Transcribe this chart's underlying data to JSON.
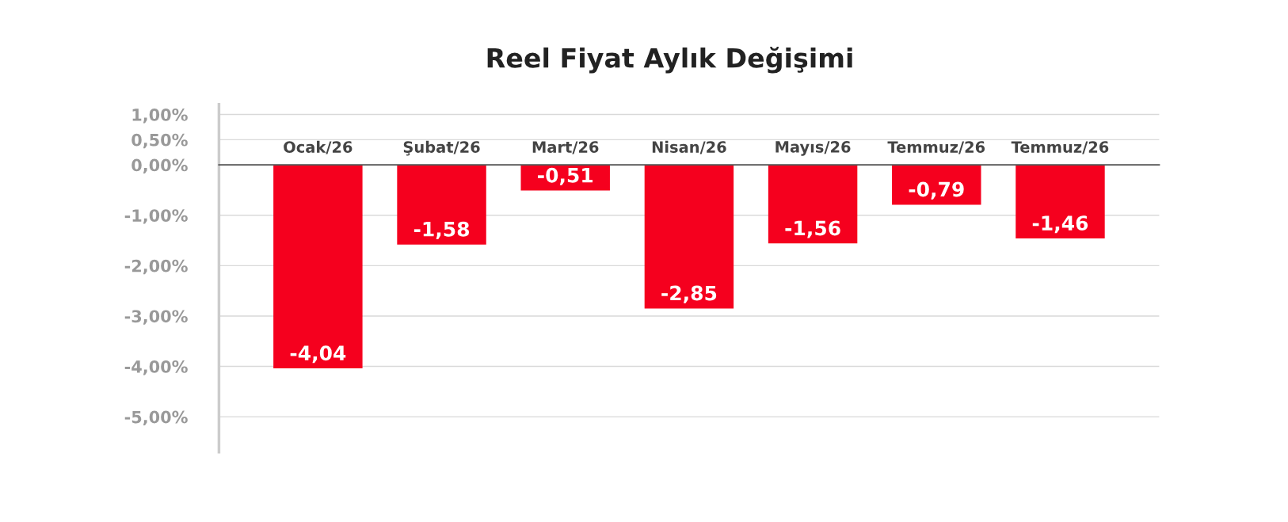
{
  "chart_data": {
    "type": "bar",
    "title": "Reel Fiyat Aylık Değişimi",
    "categories": [
      "Ocak/26",
      "Şubat/26",
      "Mart/26",
      "Nisan/26",
      "Mayıs/26",
      "Temmuz/26",
      "Temmuz/26"
    ],
    "values": [
      -4.04,
      -1.58,
      -0.51,
      -2.85,
      -1.56,
      -0.79,
      -1.46
    ],
    "value_labels": [
      "-4,04",
      "-1,58",
      "-0,51",
      "-2,85",
      "-1,56",
      "-0,79",
      "-1,46"
    ],
    "color": "#f5001e",
    "ylim": [
      -5.7,
      1.2
    ],
    "yticks": [
      {
        "value": 1,
        "label": "1,00%"
      },
      {
        "value": 0.5,
        "label": "0,50%"
      },
      {
        "value": 0,
        "label": "0,00%"
      },
      {
        "value": -1,
        "label": "-1,00%"
      },
      {
        "value": -2,
        "label": "-2,00%"
      },
      {
        "value": -3,
        "label": "-3,00%"
      },
      {
        "value": -4,
        "label": "-4,00%"
      },
      {
        "value": -5,
        "label": "-5,00%"
      }
    ],
    "grid": "y"
  }
}
